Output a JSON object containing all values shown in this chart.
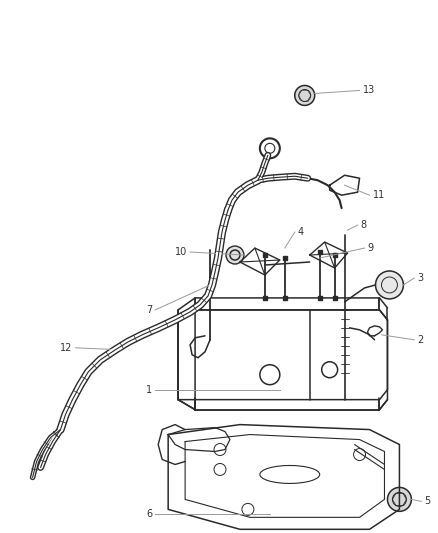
{
  "background_color": "#ffffff",
  "line_color": "#2a2a2a",
  "label_line_color": "#999999",
  "fig_width": 4.38,
  "fig_height": 5.33,
  "dpi": 100
}
